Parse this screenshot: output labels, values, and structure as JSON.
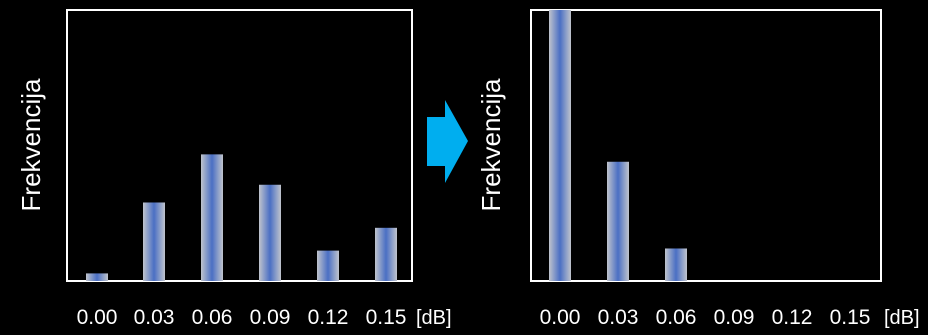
{
  "colors": {
    "background": "#000000",
    "frame": "#ffffff",
    "bar_edge": "#c0c4cc",
    "bar_center": "#4a6fc4",
    "arrow": "#00aeef",
    "text": "#ffffff"
  },
  "arrow_icon": "right-arrow-icon",
  "chart_data": [
    {
      "type": "bar",
      "categories": [
        "0.00",
        "0.03",
        "0.06",
        "0.09",
        "0.12",
        "0.15"
      ],
      "values": [
        3,
        31,
        50,
        38,
        12,
        21
      ],
      "ylim": [
        0,
        107
      ],
      "ylabel": "Frekvencija",
      "unit_label": "[dB]",
      "grid": false
    },
    {
      "type": "bar",
      "categories": [
        "0.00",
        "0.03",
        "0.06",
        "0.09",
        "0.12",
        "0.15"
      ],
      "values": [
        100,
        44,
        12,
        0,
        0,
        0
      ],
      "ylim": [
        0,
        100
      ],
      "ylabel": "Frekvencija",
      "unit_label": "[dB]",
      "grid": false
    }
  ]
}
